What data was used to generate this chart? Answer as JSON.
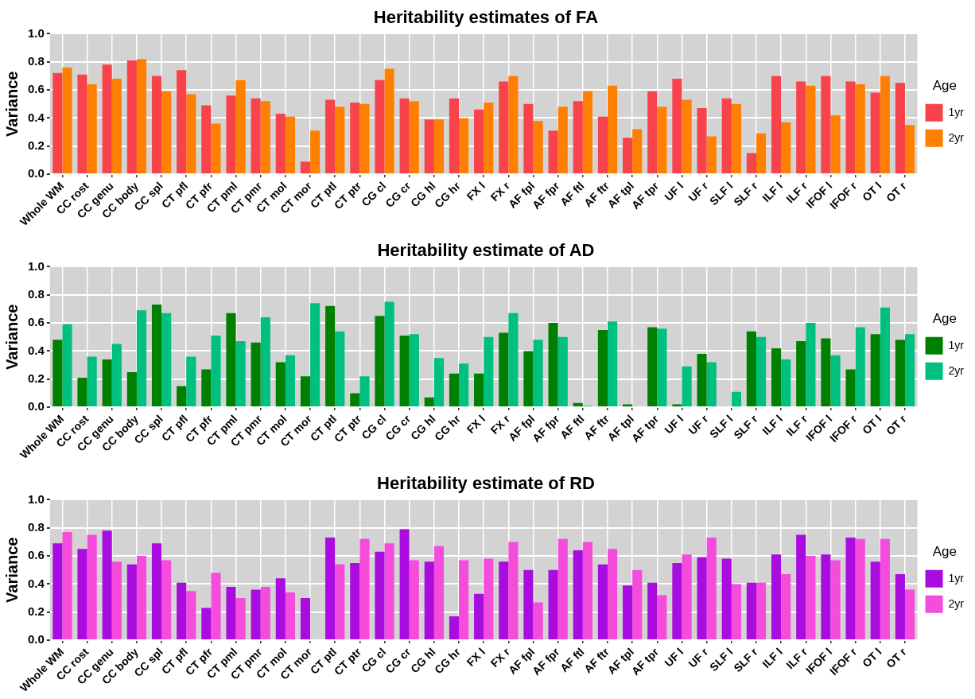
{
  "chart_data": [
    {
      "type": "bar",
      "title": "Heritability estimates of FA",
      "ylabel": "Variance",
      "legend_title": "Age",
      "legend": "right",
      "grid": true,
      "categories": [
        "Whole WM",
        "CC rost",
        "CC genu",
        "CC body",
        "CC spl",
        "CT pfl",
        "CT pfr",
        "CT pml",
        "CT pmr",
        "CT mol",
        "CT mor",
        "CT ptl",
        "CT ptr",
        "CG cl",
        "CG cr",
        "CG hl",
        "CG hr",
        "FX l",
        "FX r",
        "AF fpl",
        "AF fpr",
        "AF ftl",
        "AF ftr",
        "AF tpl",
        "AF tpr",
        "UF l",
        "UF r",
        "SLF l",
        "SLF r",
        "ILF l",
        "ILF r",
        "IFOF l",
        "IFOF r",
        "OT l",
        "OT r"
      ],
      "ylim": [
        0,
        1
      ],
      "yticks": [
        {
          "value": 0,
          "label": "0.0"
        },
        {
          "value": 0.2,
          "label": "0.2"
        },
        {
          "value": 0.4,
          "label": "0.4"
        },
        {
          "value": 0.6,
          "label": "0.6"
        },
        {
          "value": 0.8,
          "label": "0.8"
        },
        {
          "value": 1,
          "label": "1.0"
        }
      ],
      "series": [
        {
          "name": "1yr",
          "color": "#f8434a",
          "values": [
            0.72,
            0.71,
            0.78,
            0.81,
            0.7,
            0.74,
            0.49,
            0.56,
            0.54,
            0.43,
            0.09,
            0.53,
            0.51,
            0.67,
            0.54,
            0.39,
            0.54,
            0.46,
            0.66,
            0.5,
            0.31,
            0.52,
            0.41,
            0.26,
            0.59,
            0.68,
            0.47,
            0.54,
            0.15,
            0.7,
            0.66,
            0.7,
            0.66,
            0.58,
            0.65
          ]
        },
        {
          "name": "2yr",
          "color": "#ff8000",
          "values": [
            0.76,
            0.64,
            0.68,
            0.82,
            0.59,
            0.57,
            0.36,
            0.67,
            0.52,
            0.41,
            0.31,
            0.48,
            0.5,
            0.75,
            0.52,
            0.39,
            0.4,
            0.51,
            0.7,
            0.38,
            0.48,
            0.59,
            0.63,
            0.32,
            0.48,
            0.53,
            0.27,
            0.5,
            0.29,
            0.37,
            0.63,
            0.42,
            0.64,
            0.7,
            0.35
          ]
        }
      ]
    },
    {
      "type": "bar",
      "title": "Heritability estimate of AD",
      "ylabel": "Variance",
      "legend_title": "Age",
      "legend": "right",
      "grid": true,
      "categories": [
        "Whole WM",
        "CC rost",
        "CC genu",
        "CC body",
        "CC spl",
        "CT pfl",
        "CT pfr",
        "CT pml",
        "CT pmr",
        "CT mol",
        "CT mor",
        "CT ptl",
        "CT ptr",
        "CG cl",
        "CG cr",
        "CG hl",
        "CG hr",
        "FX l",
        "FX r",
        "AF fpl",
        "AF fpr",
        "AF ftl",
        "AF ftr",
        "AF tpl",
        "AF tpr",
        "UF l",
        "UF r",
        "SLF l",
        "SLF r",
        "ILF l",
        "ILF r",
        "IFOF l",
        "IFOF r",
        "OT l",
        "OT r"
      ],
      "ylim": [
        0,
        1
      ],
      "yticks": [
        {
          "value": 0,
          "label": "0.0"
        },
        {
          "value": 0.2,
          "label": "0.2"
        },
        {
          "value": 0.4,
          "label": "0.4"
        },
        {
          "value": 0.6,
          "label": "0.6"
        },
        {
          "value": 0.8,
          "label": "0.8"
        },
        {
          "value": 1,
          "label": "1.0"
        }
      ],
      "series": [
        {
          "name": "1yr",
          "color": "#008000",
          "values": [
            0.48,
            0.21,
            0.34,
            0.25,
            0.73,
            0.15,
            0.27,
            0.67,
            0.46,
            0.32,
            0.22,
            0.72,
            0.1,
            0.65,
            0.51,
            0.07,
            0.24,
            0.24,
            0.53,
            0.4,
            0.6,
            0.03,
            0.55,
            0.02,
            0.57,
            0.02,
            0.38,
            0,
            0.54,
            0.42,
            0.47,
            0.49,
            0.27,
            0.52,
            0.48
          ]
        },
        {
          "name": "2yr",
          "color": "#00c080",
          "values": [
            0.59,
            0.36,
            0.45,
            0.69,
            0.67,
            0.36,
            0.51,
            0.47,
            0.64,
            0.37,
            0.74,
            0.54,
            0.22,
            0.75,
            0.52,
            0.35,
            0.31,
            0.5,
            0.67,
            0.48,
            0.5,
            0.01,
            0.61,
            0,
            0.56,
            0.29,
            0.32,
            0.11,
            0.5,
            0.34,
            0.6,
            0.37,
            0.57,
            0.71,
            0.52
          ]
        }
      ]
    },
    {
      "type": "bar",
      "title": "Heritability estimate of RD",
      "ylabel": "Variance",
      "legend_title": "Age",
      "legend": "right",
      "grid": true,
      "categories": [
        "Whole WM",
        "CC rost",
        "CC genu",
        "CC body",
        "CC spl",
        "CT pfl",
        "CT pfr",
        "CT pml",
        "CT pmr",
        "CT mol",
        "CT mor",
        "CT ptl",
        "CT ptr",
        "CG cl",
        "CG cr",
        "CG hl",
        "CG hr",
        "FX l",
        "FX r",
        "AF fpl",
        "AF fpr",
        "AF ftl",
        "AF ftr",
        "AF tpl",
        "AF tpr",
        "UF l",
        "UF r",
        "SLF l",
        "SLF r",
        "ILF l",
        "ILF r",
        "IFOF l",
        "IFOF r",
        "OT l",
        "OT r"
      ],
      "ylim": [
        0,
        1
      ],
      "yticks": [
        {
          "value": 0,
          "label": "0.0"
        },
        {
          "value": 0.2,
          "label": "0.2"
        },
        {
          "value": 0.4,
          "label": "0.4"
        },
        {
          "value": 0.6,
          "label": "0.6"
        },
        {
          "value": 0.8,
          "label": "0.8"
        },
        {
          "value": 1,
          "label": "1.0"
        }
      ],
      "series": [
        {
          "name": "1yr",
          "color": "#aa0ce0",
          "values": [
            0.69,
            0.65,
            0.78,
            0.54,
            0.69,
            0.41,
            0.23,
            0.38,
            0.36,
            0.44,
            0.3,
            0.73,
            0.55,
            0.63,
            0.79,
            0.56,
            0.17,
            0.33,
            0.56,
            0.5,
            0.5,
            0.64,
            0.54,
            0.39,
            0.41,
            0.55,
            0.59,
            0.58,
            0.41,
            0.61,
            0.75,
            0.61,
            0.73,
            0.56,
            0.47
          ]
        },
        {
          "name": "2yr",
          "color": "#f54cdc",
          "values": [
            0.77,
            0.75,
            0.56,
            0.6,
            0.57,
            0.35,
            0.48,
            0.3,
            0.38,
            0.34,
            0,
            0.54,
            0.72,
            0.69,
            0.57,
            0.67,
            0.57,
            0.58,
            0.7,
            0.27,
            0.72,
            0.7,
            0.65,
            0.5,
            0.32,
            0.61,
            0.73,
            0.4,
            0.41,
            0.47,
            0.6,
            0.57,
            0.72,
            0.72,
            0.36
          ]
        }
      ]
    }
  ]
}
